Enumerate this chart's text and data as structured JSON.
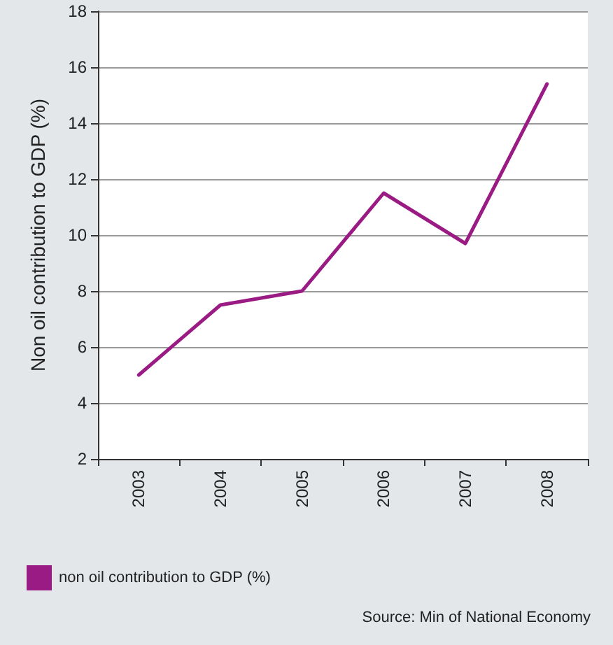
{
  "chart_data": {
    "type": "line",
    "ylabel": "Non oil contribution to GDP (%)",
    "categories": [
      "2003",
      "2004",
      "2005",
      "2006",
      "2007",
      "2008"
    ],
    "series": [
      {
        "name": "non oil contribution to GDP (%)",
        "color": "#9b1b84",
        "values": [
          5.0,
          7.5,
          8.0,
          11.5,
          9.7,
          15.4
        ]
      }
    ],
    "ylim": [
      2,
      18
    ],
    "yticks": [
      2,
      4,
      6,
      8,
      10,
      12,
      14,
      16,
      18
    ],
    "grid": "y",
    "legend": "bottom left",
    "marker": "none",
    "line_style": "solid",
    "annotations": [
      "Source: Min of National Economy"
    ]
  }
}
